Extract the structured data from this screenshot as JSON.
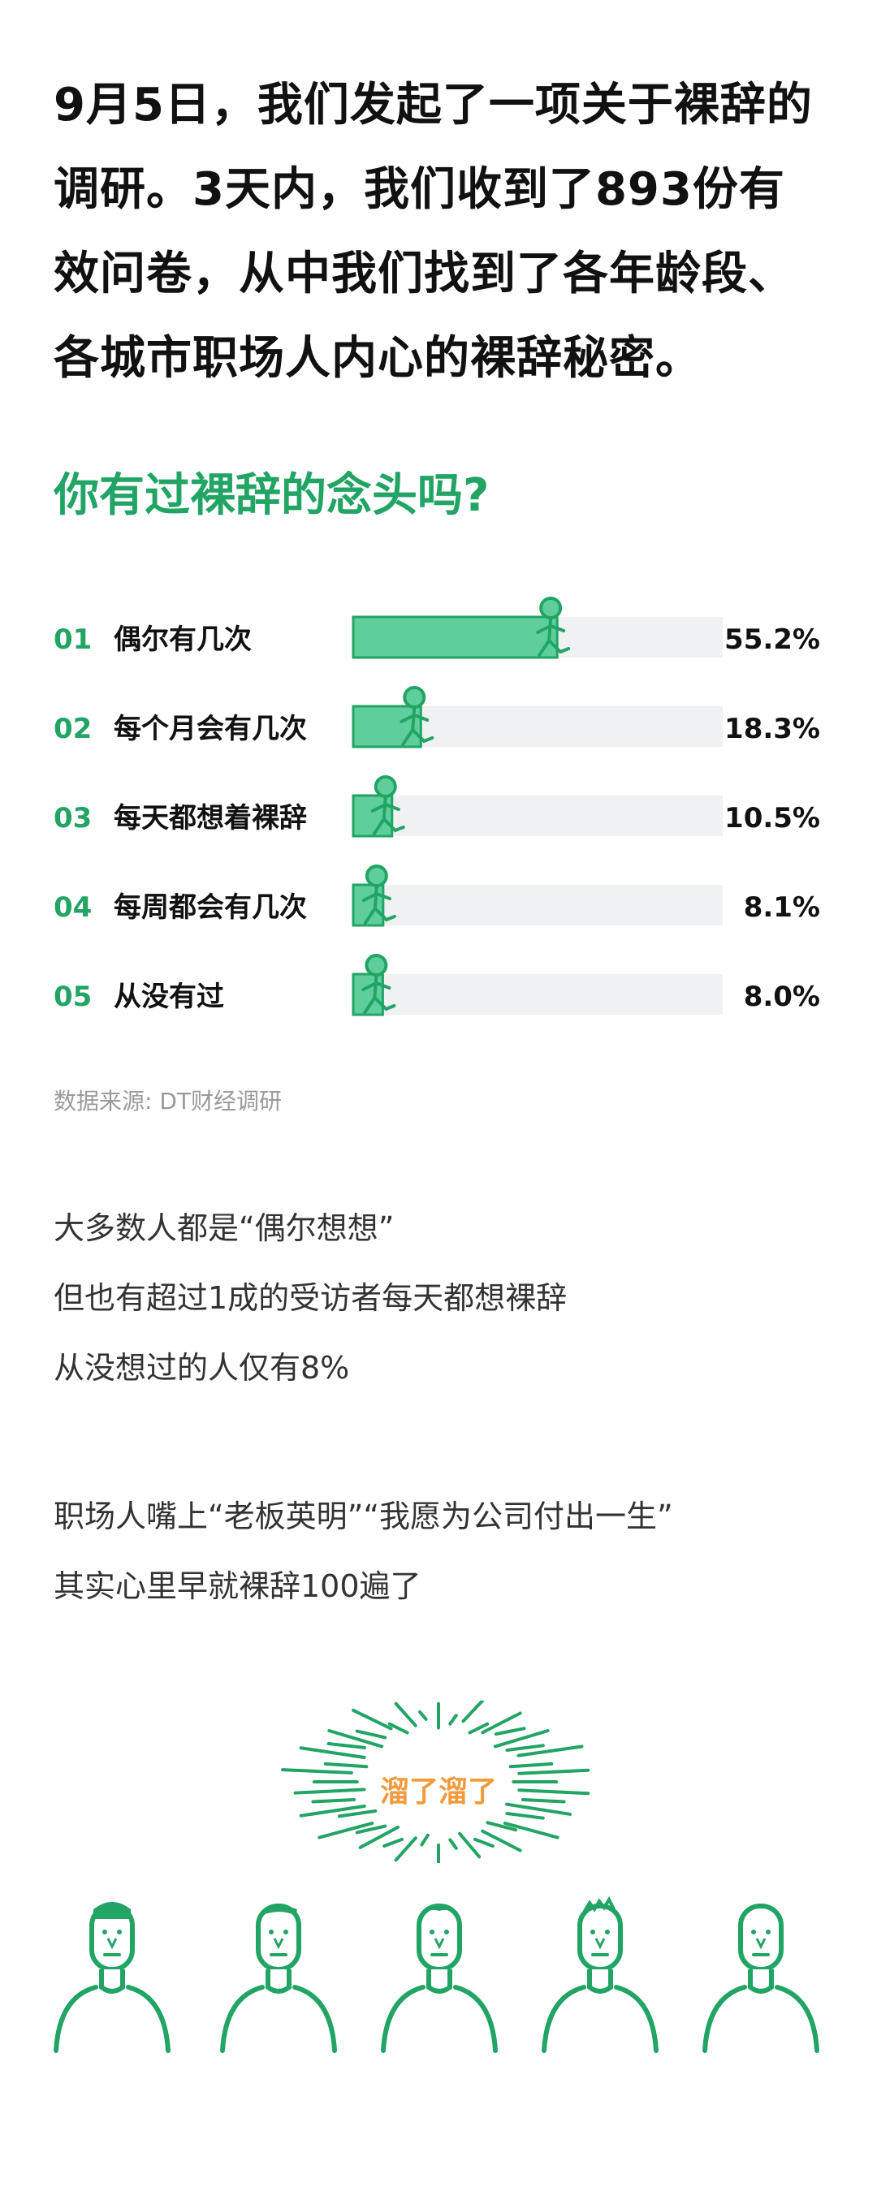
{
  "intro": {
    "lines": [
      "9月5日，我们发起了一项关于裸辞的",
      "调研。3天内，我们收到了893份有",
      "效问卷，从中我们找到了各年龄段、",
      "各城市职场人内心的裸辞秘密。"
    ]
  },
  "question": "你有过裸辞的念头吗?",
  "colors": {
    "accent": "#22a464",
    "bar_fill": "#5ecf9c",
    "track": "#f0f1f3",
    "burst_text": "#f39a3b"
  },
  "chart_data": {
    "type": "bar",
    "orientation": "horizontal",
    "title": "你有过裸辞的念头吗?",
    "categories": [
      "偶尔有几次",
      "每个月会有几次",
      "每天都想着裸辞",
      "每周都会有几次",
      "从没有过"
    ],
    "indices": [
      "01",
      "02",
      "03",
      "04",
      "05"
    ],
    "values": [
      55.2,
      18.3,
      10.5,
      8.1,
      8.0
    ],
    "labels": [
      "55.2%",
      "18.3%",
      "10.5%",
      "8.1%",
      "8.0%"
    ],
    "xlim": [
      0,
      100
    ],
    "grid": false,
    "legend": "none"
  },
  "source": "数据来源: DT财经调研",
  "paragraph1": [
    "大多数人都是“偶尔想想”",
    "但也有超过1成的受访者每天都想裸辞",
    "从没想过的人仅有8%"
  ],
  "paragraph2": [
    "职场人嘴上“老板英明”“我愿为公司付出一生”",
    "其实心里早就裸辞100遍了"
  ],
  "burst_text": "溜了溜了",
  "people": [
    "person-1",
    "person-2",
    "person-3",
    "person-4",
    "person-5"
  ]
}
